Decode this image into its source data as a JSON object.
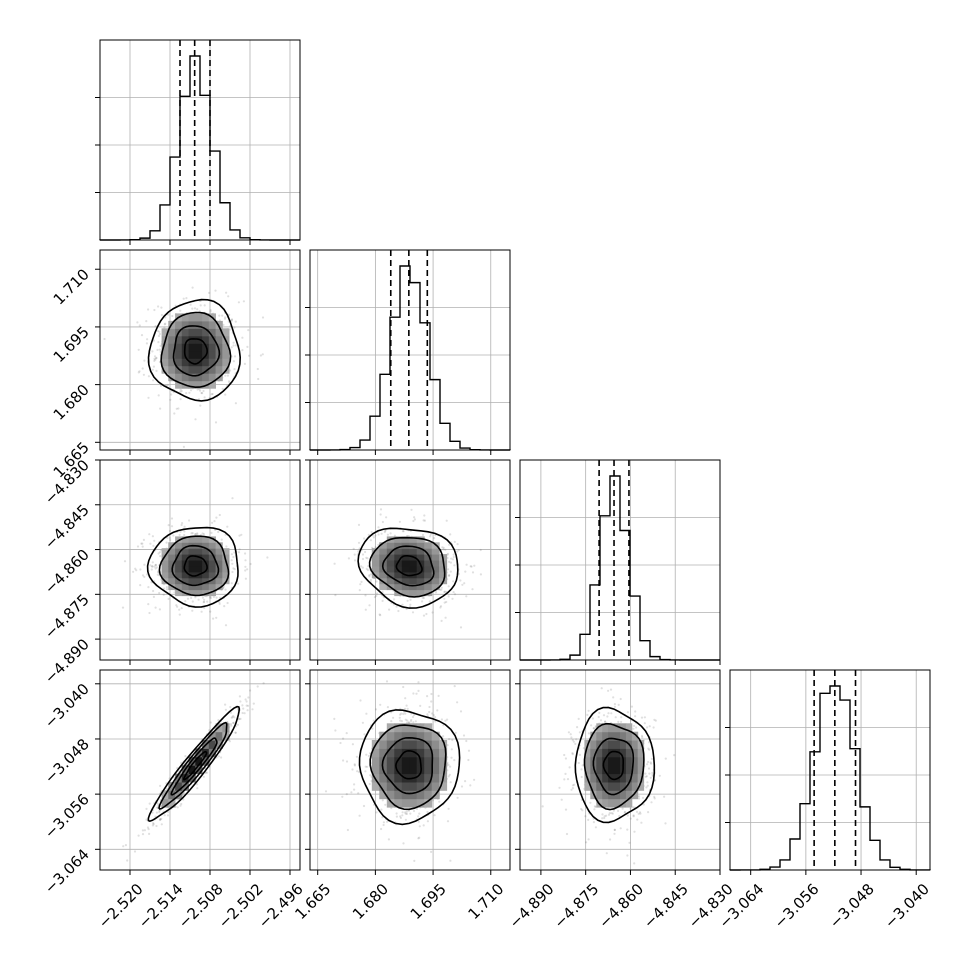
{
  "chart_data": {
    "type": "corner",
    "parameters": [
      {
        "mean": -2.5102,
        "sd": 0.0025,
        "range": [
          -2.5245,
          -2.4945
        ],
        "ticks": [
          "−2.520",
          "−2.514",
          "−2.508",
          "−2.502",
          "−2.496"
        ],
        "tick_values": [
          -2.52,
          -2.514,
          -2.508,
          -2.502,
          -2.496
        ],
        "quantiles": [
          -2.5125,
          -2.5103,
          -2.508
        ]
      },
      {
        "mean": 1.6888,
        "sd": 0.0048,
        "range": [
          1.663,
          1.715
        ],
        "ticks": [
          "1.665",
          "1.680",
          "1.695",
          "1.710"
        ],
        "tick_values": [
          1.665,
          1.68,
          1.695,
          1.71
        ],
        "quantiles": [
          1.684,
          1.6887,
          1.6935
        ]
      },
      {
        "mean": -4.8655,
        "sd": 0.0049,
        "range": [
          -4.897,
          -4.83
        ],
        "ticks": [
          "−4.890",
          "−4.875",
          "−4.860",
          "−4.845",
          "−4.830"
        ],
        "tick_values": [
          -4.89,
          -4.875,
          -4.86,
          -4.845,
          -4.83
        ],
        "quantiles": [
          -4.8705,
          -4.8655,
          -4.8605
        ]
      },
      {
        "mean": -3.0518,
        "sd": 0.003,
        "range": [
          -3.067,
          -3.038
        ],
        "ticks": [
          "−3.064",
          "−3.056",
          "−3.048",
          "−3.040"
        ],
        "tick_values": [
          -3.064,
          -3.056,
          -3.048,
          -3.04
        ],
        "quantiles": [
          -3.0548,
          -3.0518,
          -3.0488
        ]
      }
    ],
    "correlations": [
      [
        1.0,
        0.0,
        0.0,
        0.95
      ],
      [
        0.0,
        1.0,
        -0.12,
        0.0
      ],
      [
        0.0,
        -0.12,
        1.0,
        0.0
      ],
      [
        0.95,
        0.0,
        0.0,
        1.0
      ]
    ],
    "contour_levels_sigma": [
      0.5,
      1.0,
      1.5,
      2.0
    ],
    "histogram_bins": 20,
    "grid": true,
    "xlabel": "",
    "ylabel": "",
    "title": ""
  }
}
